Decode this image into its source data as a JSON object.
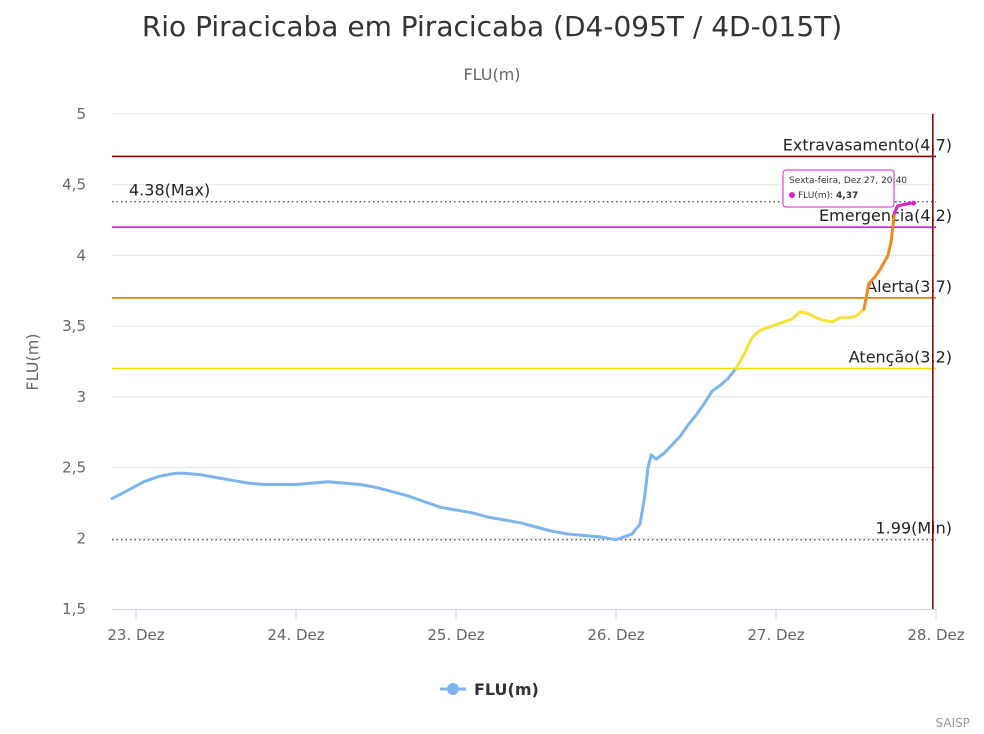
{
  "chart_data": {
    "type": "line",
    "title": "Rio Piracicaba em Piracicaba (D4-095T / 4D-015T)",
    "subtitle": "FLU(m)",
    "ylabel": "FLU(m)",
    "xlabel": "",
    "ylim": [
      1.5,
      5
    ],
    "xlim": [
      22.85,
      28.0
    ],
    "y_ticks": [
      {
        "v": 1.5,
        "label": "1,5"
      },
      {
        "v": 2,
        "label": "2"
      },
      {
        "v": 2.5,
        "label": "2,5"
      },
      {
        "v": 3,
        "label": "3"
      },
      {
        "v": 3.5,
        "label": "3,5"
      },
      {
        "v": 4,
        "label": "4"
      },
      {
        "v": 4.5,
        "label": "4,5"
      },
      {
        "v": 5,
        "label": "5"
      }
    ],
    "x_ticks": [
      {
        "v": 23,
        "label": "23. Dez"
      },
      {
        "v": 24,
        "label": "24. Dez"
      },
      {
        "v": 25,
        "label": "25. Dez"
      },
      {
        "v": 26,
        "label": "26. Dez"
      },
      {
        "v": 27,
        "label": "27. Dez"
      },
      {
        "v": 28,
        "label": "28. Dez"
      }
    ],
    "grid": true,
    "legend": {
      "position": "bottom-center",
      "label": "FLU(m)"
    },
    "series": [
      {
        "name": "FLU(m)",
        "x": [
          22.85,
          22.95,
          23.05,
          23.15,
          23.25,
          23.3,
          23.4,
          23.5,
          23.6,
          23.7,
          23.8,
          23.9,
          24.0,
          24.1,
          24.2,
          24.3,
          24.4,
          24.5,
          24.6,
          24.7,
          24.8,
          24.9,
          25.0,
          25.1,
          25.2,
          25.3,
          25.4,
          25.5,
          25.6,
          25.7,
          25.8,
          25.9,
          25.95,
          26.0,
          26.05,
          26.1,
          26.15,
          26.18,
          26.2,
          26.22,
          26.25,
          26.3,
          26.35,
          26.4,
          26.45,
          26.5,
          26.55,
          26.6,
          26.65,
          26.7,
          26.75,
          26.8,
          26.85,
          26.9,
          26.95,
          27.0,
          27.05,
          27.1,
          27.15,
          27.2,
          27.25,
          27.3,
          27.35,
          27.4,
          27.45,
          27.5,
          27.55,
          27.58,
          27.62,
          27.65,
          27.7,
          27.72,
          27.74,
          27.76,
          27.8,
          27.84,
          27.86
        ],
        "values": [
          2.28,
          2.34,
          2.4,
          2.44,
          2.46,
          2.46,
          2.45,
          2.43,
          2.41,
          2.39,
          2.38,
          2.38,
          2.38,
          2.39,
          2.4,
          2.39,
          2.38,
          2.36,
          2.33,
          2.3,
          2.26,
          2.22,
          2.2,
          2.18,
          2.15,
          2.13,
          2.11,
          2.08,
          2.05,
          2.03,
          2.02,
          2.01,
          2.0,
          1.99,
          2.01,
          2.03,
          2.1,
          2.3,
          2.5,
          2.59,
          2.56,
          2.6,
          2.66,
          2.72,
          2.8,
          2.87,
          2.95,
          3.04,
          3.08,
          3.13,
          3.2,
          3.3,
          3.42,
          3.47,
          3.49,
          3.51,
          3.53,
          3.55,
          3.6,
          3.59,
          3.56,
          3.54,
          3.53,
          3.56,
          3.56,
          3.57,
          3.62,
          3.8,
          3.85,
          3.9,
          4.0,
          4.1,
          4.3,
          4.35,
          4.36,
          4.37,
          4.37
        ],
        "color": "#7cb5ec"
      }
    ],
    "zones": [
      {
        "below": 3.2,
        "color": "#7cb5ec"
      },
      {
        "below": 3.7,
        "color": "#f5e13a"
      },
      {
        "below": 4.2,
        "color": "#ee8a1f"
      },
      {
        "below": 99,
        "color": "#dd22cc"
      }
    ],
    "plot_lines": [
      {
        "value": 4.7,
        "label": "Extravasamento(4.7)",
        "color": "#8b0000",
        "style": "solid"
      },
      {
        "value": 4.2,
        "label": "Emergencia(4.2)",
        "color": "#d81ed8",
        "style": "solid"
      },
      {
        "value": 3.7,
        "label": "Alerta(3.7)",
        "color": "#e07b00",
        "style": "solid"
      },
      {
        "value": 3.2,
        "label": "Atenção(3.2)",
        "color": "#f0e000",
        "style": "solid"
      },
      {
        "value": 4.38,
        "label": "4.38(Max)",
        "color": "#555555",
        "style": "dotted",
        "align": "left"
      },
      {
        "value": 1.99,
        "label": "1.99(Min)",
        "color": "#555555",
        "style": "dotted",
        "align": "right"
      }
    ],
    "x_plot_line": {
      "value": 27.98,
      "color": "#8b0000"
    },
    "tooltip": {
      "header": "Sexta-feira, Dez 27, 20:40",
      "series_label": "FLU(m): ",
      "value_label": "4,37",
      "border_color": "#dd22cc"
    },
    "credits": "SAISP"
  }
}
